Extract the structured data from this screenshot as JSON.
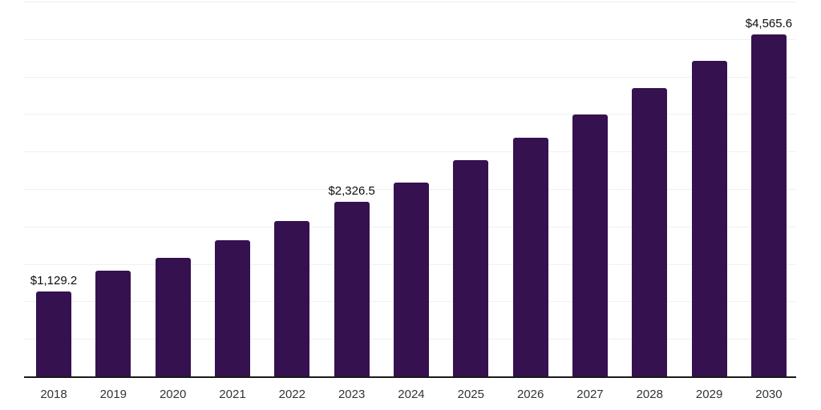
{
  "chart": {
    "background_color": "#ffffff",
    "bar_color": "#35114F",
    "gridline_color": "#f0f0f0",
    "axis_color": "#1a1a1a",
    "data_label_color": "#0d0d0d",
    "tick_label_color": "#333333"
  },
  "chart_data": {
    "type": "bar",
    "title": "",
    "xlabel": "",
    "ylabel": "",
    "categories": [
      "2018",
      "2019",
      "2020",
      "2021",
      "2022",
      "2023",
      "2024",
      "2025",
      "2026",
      "2027",
      "2028",
      "2029",
      "2030"
    ],
    "values": [
      1129.2,
      1410,
      1580,
      1820,
      2070,
      2326.5,
      2590,
      2880,
      3180,
      3495,
      3845,
      4210,
      4565.6
    ],
    "data_labels": [
      "$1,129.2",
      null,
      null,
      null,
      null,
      "$2,326.5",
      null,
      null,
      null,
      null,
      null,
      null,
      "$4,565.6"
    ],
    "ylim": [
      0,
      5000
    ],
    "gridline_interval": 500,
    "grid": "horizontal",
    "y_tick_labels_shown": false,
    "legend": "none"
  }
}
